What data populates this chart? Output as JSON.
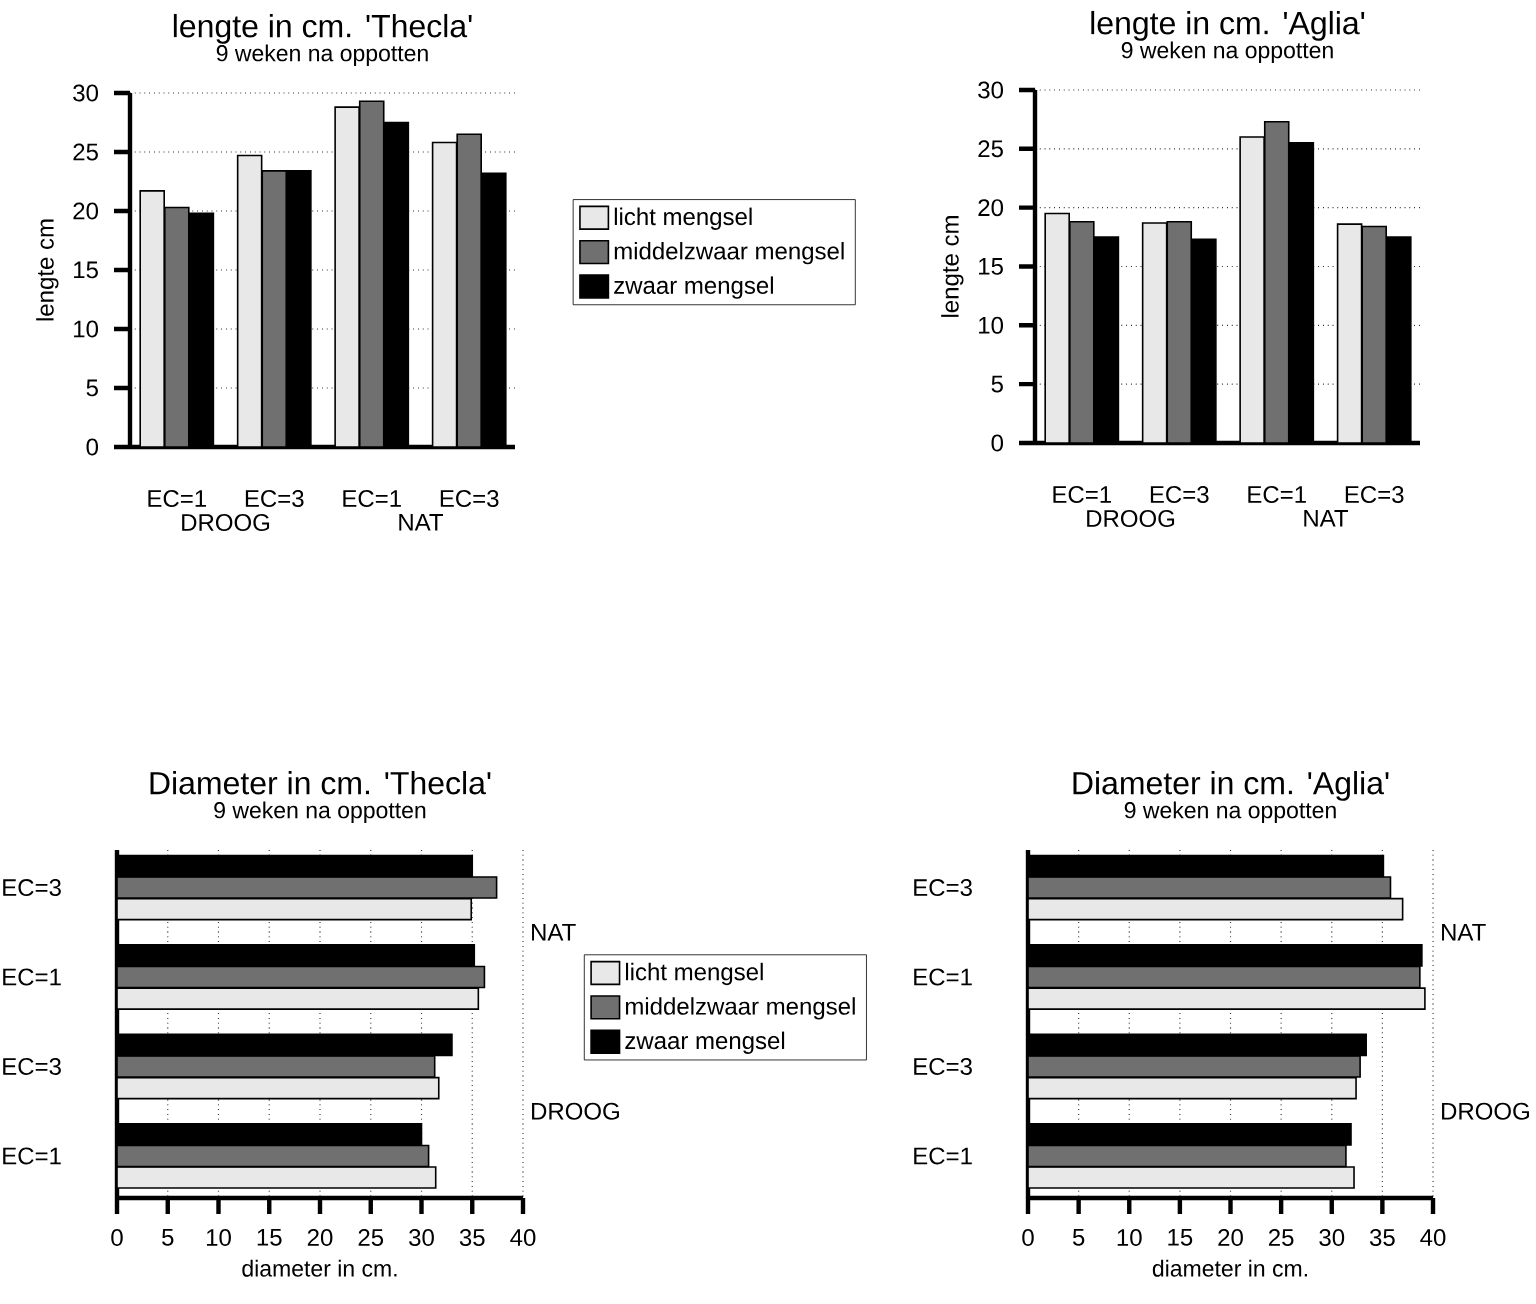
{
  "chart_data": [
    {
      "type": "bar",
      "title": "lengte in cm. 'Thecla'",
      "subtitle": "9 weken na oppotten",
      "ylabel": "lengte cm",
      "categories": [
        "EC=1",
        "EC=3",
        "EC=1",
        "EC=3"
      ],
      "annotations": [
        "DROOG",
        "NAT"
      ],
      "ylim": [
        0,
        30
      ],
      "yticks": [
        0,
        5,
        10,
        15,
        20,
        25,
        30
      ],
      "grid": "y",
      "legend": "right",
      "series": [
        {
          "name": "licht mengsel",
          "color": "#e8e8e8",
          "values": [
            21.7,
            24.7,
            28.8,
            25.8
          ]
        },
        {
          "name": "middelzwaar mengsel",
          "color": "#707070",
          "values": [
            20.3,
            23.4,
            29.3,
            26.5
          ]
        },
        {
          "name": "zwaar mengsel",
          "color": "#000000",
          "values": [
            19.8,
            23.4,
            27.5,
            23.2
          ]
        }
      ]
    },
    {
      "type": "bar",
      "title": "lengte in cm. 'Aglia'",
      "subtitle": "9 weken na oppotten",
      "ylabel": "lengte cm",
      "categories": [
        "EC=1",
        "EC=3",
        "EC=1",
        "EC=3"
      ],
      "annotations": [
        "DROOG",
        "NAT"
      ],
      "ylim": [
        0,
        30
      ],
      "yticks": [
        0,
        5,
        10,
        15,
        20,
        25,
        30
      ],
      "grid": "y",
      "series": [
        {
          "color": "#e8e8e8",
          "values": [
            19.5,
            18.7,
            26.0,
            18.6
          ]
        },
        {
          "color": "#707070",
          "values": [
            18.8,
            18.8,
            27.3,
            18.4
          ]
        },
        {
          "color": "#000000",
          "values": [
            17.5,
            17.3,
            25.5,
            17.5
          ]
        }
      ]
    },
    {
      "type": "bar",
      "orientation": "horizontal",
      "title": "Diameter in cm. 'Thecla'",
      "subtitle": "9 weken na oppotten",
      "xlabel": "diameter in cm.",
      "categories": [
        "EC=3",
        "EC=1",
        "EC=3",
        "EC=1"
      ],
      "annotations": [
        "NAT",
        "DROOG"
      ],
      "xlim": [
        0,
        40
      ],
      "xticks": [
        0,
        5,
        10,
        15,
        20,
        25,
        30,
        35,
        40
      ],
      "grid": "x",
      "legend": "right",
      "series": [
        {
          "name": "licht mengsel",
          "color": "#e8e8e8",
          "values": [
            34.9,
            35.6,
            31.7,
            31.4
          ]
        },
        {
          "name": "middelzwaar mengsel",
          "color": "#707070",
          "values": [
            37.4,
            36.2,
            31.3,
            30.7
          ]
        },
        {
          "name": "zwaar mengsel",
          "color": "#000000",
          "values": [
            35.0,
            35.2,
            33.0,
            30.0
          ]
        }
      ]
    },
    {
      "type": "bar",
      "orientation": "horizontal",
      "title": "Diameter in cm. 'Aglia'",
      "subtitle": "9 weken na oppotten",
      "xlabel": "diameter in cm.",
      "categories": [
        "EC=3",
        "EC=1",
        "EC=3",
        "EC=1"
      ],
      "annotations": [
        "NAT",
        "DROOG"
      ],
      "xlim": [
        0,
        40
      ],
      "xticks": [
        0,
        5,
        10,
        15,
        20,
        25,
        30,
        35,
        40
      ],
      "grid": "x",
      "series": [
        {
          "color": "#e8e8e8",
          "values": [
            37.0,
            39.2,
            32.4,
            32.2
          ]
        },
        {
          "color": "#707070",
          "values": [
            35.8,
            38.7,
            32.8,
            31.4
          ]
        },
        {
          "color": "#000000",
          "values": [
            35.1,
            38.9,
            33.4,
            31.9
          ]
        }
      ]
    }
  ]
}
